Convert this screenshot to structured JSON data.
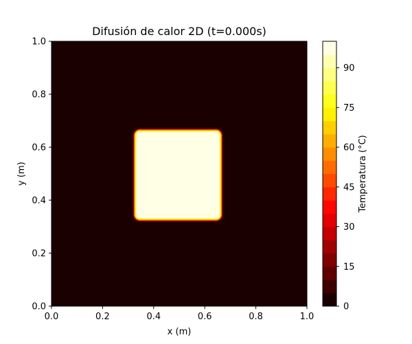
{
  "chart_data": {
    "type": "heatmap",
    "title": "Difusión de calor 2D (t=0.000s)",
    "xlabel": "x (m)",
    "ylabel": "y (m)",
    "xlim": [
      0.0,
      1.0
    ],
    "ylim": [
      0.0,
      1.0
    ],
    "x_ticks": [
      "0.0",
      "0.2",
      "0.4",
      "0.6",
      "0.8",
      "1.0"
    ],
    "y_ticks": [
      "0.0",
      "0.2",
      "0.4",
      "0.6",
      "0.8",
      "1.0"
    ],
    "colorbar": {
      "label": "Temperatura (°C)",
      "ticks": [
        "0",
        "15",
        "30",
        "45",
        "60",
        "75",
        "90"
      ],
      "range": [
        0,
        100
      ],
      "levels": 20,
      "colormap": "hot"
    },
    "background_temperature": 0,
    "hot_region": {
      "x_range": [
        0.33,
        0.66
      ],
      "y_range": [
        0.33,
        0.66
      ],
      "temperature": 100
    },
    "grid": false
  }
}
